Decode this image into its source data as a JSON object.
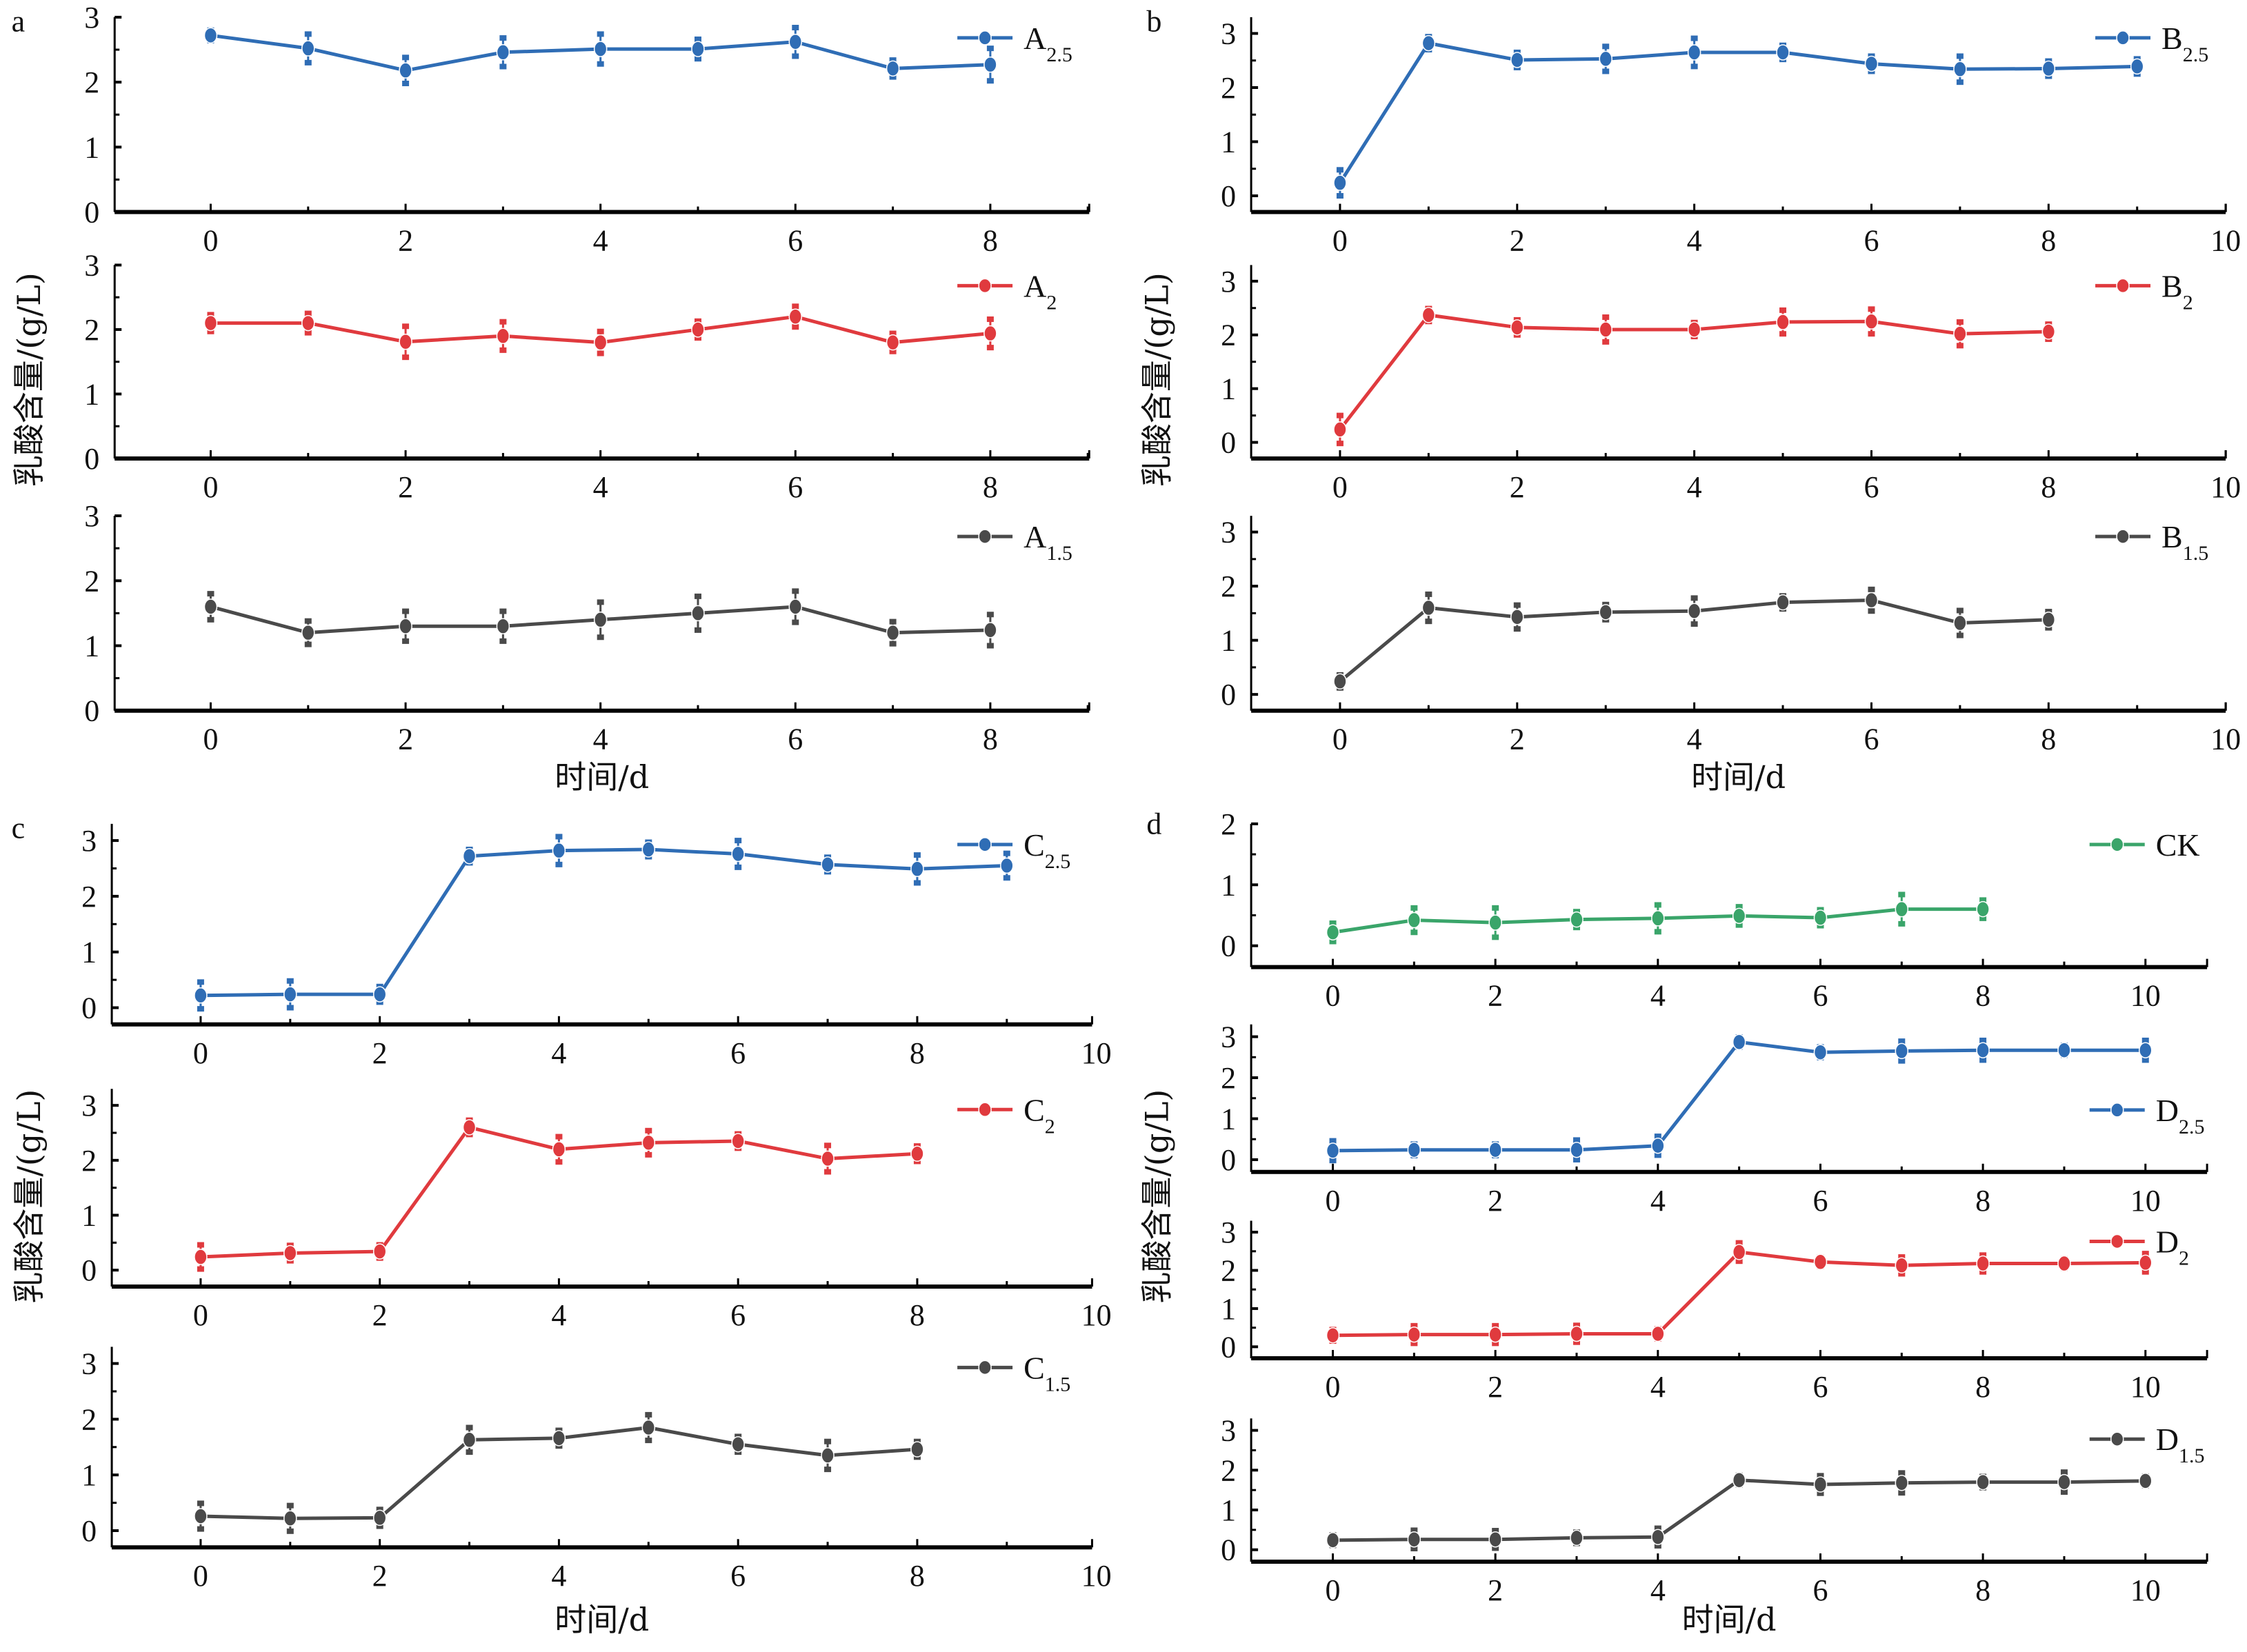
{
  "figure": {
    "ylabel": "乳酸含量/(g/L)",
    "xlabel": "时间/d"
  },
  "colors": {
    "blue": "#2f6db5",
    "red": "#e03a3e",
    "gray": "#4a4a4a",
    "green": "#3aa56a"
  },
  "chart_data": [
    {
      "panel": "a",
      "type": "line",
      "xlim": [
        -1,
        9
      ],
      "xticks": [
        0,
        2,
        4,
        6,
        8
      ],
      "subplots": [
        {
          "name": "A",
          "sub": "2.5",
          "color": "blue",
          "ylim": [
            0,
            3
          ],
          "yticks": [
            0,
            1,
            2,
            3
          ],
          "x": [
            0,
            1,
            2,
            3,
            4,
            5,
            6,
            7,
            8
          ],
          "y": [
            2.72,
            2.52,
            2.18,
            2.46,
            2.51,
            2.51,
            2.62,
            2.21,
            2.27
          ],
          "err": [
            0.08,
            0.22,
            0.2,
            0.22,
            0.23,
            0.15,
            0.22,
            0.13,
            0.25
          ]
        },
        {
          "name": "A",
          "sub": "2",
          "color": "red",
          "ylim": [
            0,
            3
          ],
          "yticks": [
            0,
            1,
            2,
            3
          ],
          "x": [
            0,
            1,
            2,
            3,
            4,
            5,
            6,
            7,
            8
          ],
          "y": [
            2.1,
            2.1,
            1.81,
            1.9,
            1.8,
            2.0,
            2.2,
            1.8,
            1.94
          ],
          "err": [
            0.13,
            0.15,
            0.24,
            0.22,
            0.17,
            0.13,
            0.16,
            0.14,
            0.22
          ]
        },
        {
          "name": "A",
          "sub": "1.5",
          "color": "gray",
          "ylim": [
            0,
            3
          ],
          "yticks": [
            0,
            1,
            2,
            3
          ],
          "x": [
            0,
            1,
            2,
            3,
            4,
            5,
            6,
            7,
            8
          ],
          "y": [
            1.6,
            1.2,
            1.3,
            1.3,
            1.4,
            1.5,
            1.6,
            1.2,
            1.24
          ],
          "err": [
            0.2,
            0.18,
            0.23,
            0.23,
            0.27,
            0.26,
            0.24,
            0.17,
            0.24
          ]
        }
      ]
    },
    {
      "panel": "b",
      "type": "line",
      "xlim": [
        -1,
        10
      ],
      "xticks": [
        0,
        2,
        4,
        6,
        8,
        10
      ],
      "subplots": [
        {
          "name": "B",
          "sub": "2.5",
          "color": "blue",
          "ylim": [
            -0.3,
            3.3
          ],
          "yticks": [
            0,
            1,
            2,
            3
          ],
          "x": [
            0,
            1,
            2,
            3,
            4,
            5,
            6,
            7,
            8,
            9
          ],
          "y": [
            0.24,
            2.82,
            2.51,
            2.53,
            2.65,
            2.65,
            2.44,
            2.34,
            2.35,
            2.39
          ],
          "err": [
            0.24,
            0.12,
            0.14,
            0.23,
            0.26,
            0.13,
            0.14,
            0.24,
            0.14,
            0.14
          ]
        },
        {
          "name": "B",
          "sub": "2",
          "color": "red",
          "ylim": [
            -0.3,
            3.3
          ],
          "yticks": [
            0,
            1,
            2,
            3
          ],
          "x": [
            0,
            1,
            2,
            3,
            4,
            5,
            6,
            7,
            8
          ],
          "y": [
            0.24,
            2.37,
            2.14,
            2.1,
            2.1,
            2.24,
            2.25,
            2.02,
            2.06
          ],
          "err": [
            0.26,
            0.12,
            0.14,
            0.23,
            0.13,
            0.22,
            0.23,
            0.22,
            0.14
          ]
        },
        {
          "name": "B",
          "sub": "1.5",
          "color": "gray",
          "ylim": [
            -0.3,
            3.3
          ],
          "yticks": [
            0,
            1,
            2,
            3
          ],
          "x": [
            0,
            1,
            2,
            3,
            4,
            5,
            6,
            7,
            8
          ],
          "y": [
            0.24,
            1.6,
            1.43,
            1.52,
            1.54,
            1.7,
            1.74,
            1.32,
            1.38
          ],
          "err": [
            0.12,
            0.25,
            0.22,
            0.14,
            0.24,
            0.12,
            0.2,
            0.23,
            0.15
          ]
        }
      ]
    },
    {
      "panel": "c",
      "type": "line",
      "xlim": [
        -1,
        10
      ],
      "xticks": [
        0,
        2,
        4,
        6,
        8,
        10
      ],
      "subplots": [
        {
          "name": "C",
          "sub": "2.5",
          "color": "blue",
          "ylim": [
            -0.3,
            3.3
          ],
          "yticks": [
            0,
            1,
            2,
            3
          ],
          "x": [
            0,
            1,
            2,
            3,
            4,
            5,
            6,
            7,
            8,
            9
          ],
          "y": [
            0.22,
            0.24,
            0.24,
            2.72,
            2.82,
            2.84,
            2.76,
            2.57,
            2.49,
            2.55
          ],
          "err": [
            0.24,
            0.24,
            0.14,
            0.12,
            0.25,
            0.13,
            0.24,
            0.13,
            0.25,
            0.22
          ]
        },
        {
          "name": "C",
          "sub": "2",
          "color": "red",
          "ylim": [
            -0.3,
            3.3
          ],
          "yticks": [
            0,
            1,
            2,
            3
          ],
          "x": [
            0,
            1,
            2,
            3,
            4,
            5,
            6,
            7,
            8
          ],
          "y": [
            0.24,
            0.31,
            0.34,
            2.6,
            2.2,
            2.32,
            2.35,
            2.03,
            2.12
          ],
          "err": [
            0.22,
            0.14,
            0.12,
            0.13,
            0.23,
            0.22,
            0.13,
            0.24,
            0.14
          ]
        },
        {
          "name": "C",
          "sub": "1.5",
          "color": "gray",
          "ylim": [
            -0.3,
            3.3
          ],
          "yticks": [
            0,
            1,
            2,
            3
          ],
          "x": [
            0,
            1,
            2,
            3,
            4,
            5,
            6,
            7,
            8
          ],
          "y": [
            0.26,
            0.22,
            0.23,
            1.63,
            1.66,
            1.85,
            1.55,
            1.35,
            1.46
          ],
          "err": [
            0.23,
            0.23,
            0.15,
            0.22,
            0.14,
            0.23,
            0.14,
            0.25,
            0.14
          ]
        }
      ]
    },
    {
      "panel": "d",
      "type": "line",
      "xlim": [
        -1,
        11
      ],
      "xticks": [
        0,
        2,
        4,
        6,
        8,
        10
      ],
      "subplots": [
        {
          "name": "CK",
          "sub": "",
          "color": "green",
          "ylim": [
            -0.35,
            2
          ],
          "yticks": [
            0,
            1,
            2
          ],
          "x": [
            0,
            1,
            2,
            3,
            4,
            5,
            6,
            7,
            8
          ],
          "y": [
            0.22,
            0.42,
            0.38,
            0.43,
            0.45,
            0.49,
            0.46,
            0.6,
            0.6
          ],
          "err": [
            0.15,
            0.2,
            0.24,
            0.13,
            0.22,
            0.15,
            0.13,
            0.24,
            0.15
          ]
        },
        {
          "name": "D",
          "sub": "2.5",
          "color": "blue",
          "ylim": [
            -0.3,
            3.3
          ],
          "yticks": [
            0,
            1,
            2,
            3
          ],
          "x": [
            0,
            1,
            2,
            3,
            4,
            5,
            6,
            7,
            8,
            9,
            10
          ],
          "y": [
            0.22,
            0.24,
            0.24,
            0.24,
            0.34,
            2.87,
            2.62,
            2.65,
            2.67,
            2.67,
            2.67
          ],
          "err": [
            0.24,
            0.14,
            0.14,
            0.24,
            0.23,
            0.12,
            0.13,
            0.24,
            0.24,
            0.12,
            0.24
          ]
        },
        {
          "name": "D",
          "sub": "2",
          "color": "red",
          "ylim": [
            -0.3,
            3.3
          ],
          "yticks": [
            0,
            1,
            2,
            3
          ],
          "x": [
            0,
            1,
            2,
            3,
            4,
            5,
            6,
            7,
            8,
            9,
            10
          ],
          "y": [
            0.3,
            0.32,
            0.32,
            0.34,
            0.34,
            2.48,
            2.22,
            2.13,
            2.18,
            2.18,
            2.2
          ],
          "err": [
            0.15,
            0.23,
            0.23,
            0.22,
            0.13,
            0.24,
            0.12,
            0.22,
            0.22,
            0.12,
            0.24
          ]
        },
        {
          "name": "D",
          "sub": "1.5",
          "color": "gray",
          "ylim": [
            -0.3,
            3.3
          ],
          "yticks": [
            0,
            1,
            2,
            3
          ],
          "x": [
            0,
            1,
            2,
            3,
            4,
            5,
            6,
            7,
            8,
            9,
            10
          ],
          "y": [
            0.24,
            0.26,
            0.26,
            0.3,
            0.32,
            1.75,
            1.64,
            1.68,
            1.7,
            1.7,
            1.73
          ],
          "err": [
            0.13,
            0.23,
            0.22,
            0.14,
            0.22,
            0.12,
            0.22,
            0.25,
            0.14,
            0.25,
            0.12
          ]
        }
      ]
    }
  ]
}
